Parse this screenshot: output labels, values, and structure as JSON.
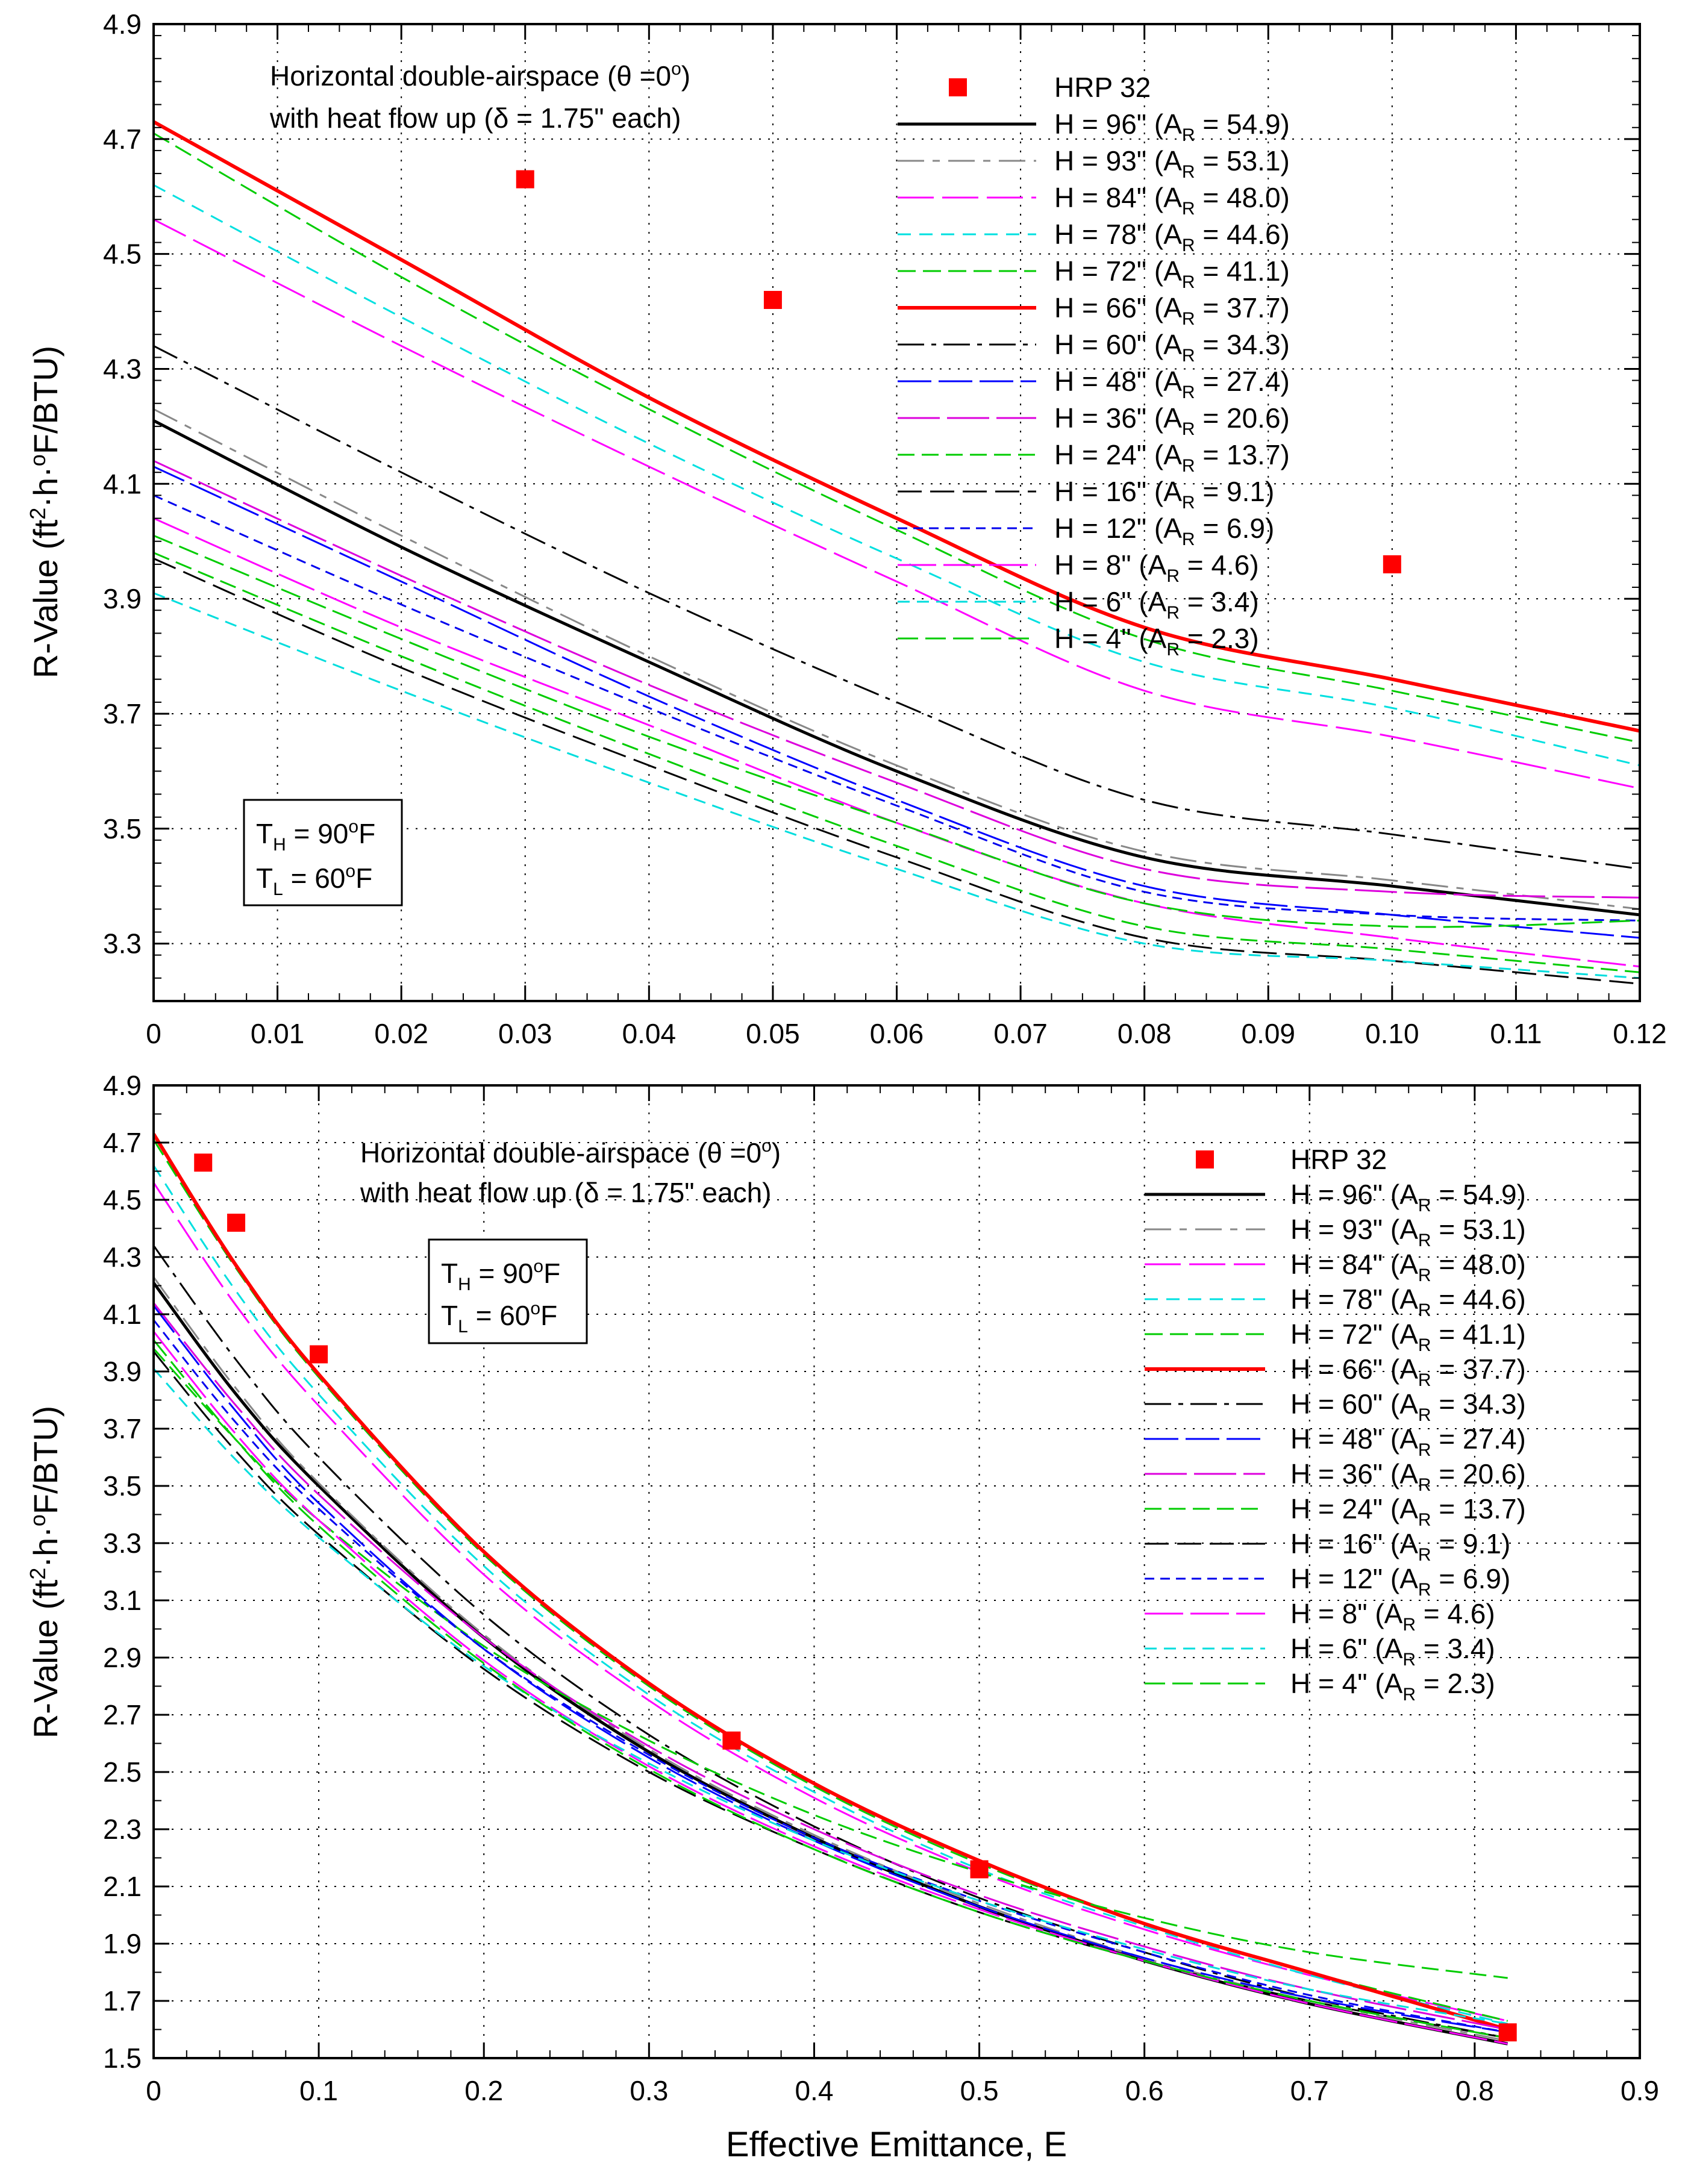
{
  "figure": {
    "shared_xlabel": "Effective Emittance, E"
  },
  "series_styles": [
    {
      "name": "H = 96\"",
      "ar": "54.9",
      "color": "#000000",
      "dash": "none",
      "width": 5
    },
    {
      "name": "H = 93\"",
      "ar": "53.1",
      "color": "#888888",
      "dash": "44,14,12,14",
      "width": 3
    },
    {
      "name": "H = 84\"",
      "ar": "48.0",
      "color": "#ff00ff",
      "dash": "60,14",
      "width": 3
    },
    {
      "name": "H = 78\"",
      "ar": "44.6",
      "color": "#00e0e0",
      "dash": "22,14",
      "width": 3
    },
    {
      "name": "H = 72\"",
      "ar": "41.1",
      "color": "#00cc00",
      "dash": "30,12",
      "width": 3
    },
    {
      "name": "H = 66\"",
      "ar": "37.7",
      "color": "#ff0000",
      "dash": "none",
      "width": 6
    },
    {
      "name": "H = 60\"",
      "ar": "34.3",
      "color": "#000000",
      "dash": "44,12,8,12",
      "width": 3
    },
    {
      "name": "H = 48\"",
      "ar": "27.4",
      "color": "#0000ff",
      "dash": "56,12",
      "width": 3
    },
    {
      "name": "H = 36\"",
      "ar": "20.6",
      "color": "#dd00dd",
      "dash": "70,12",
      "width": 3
    },
    {
      "name": "H = 24\"",
      "ar": "13.7",
      "color": "#00cc00",
      "dash": "28,12",
      "width": 3
    },
    {
      "name": "H = 16\"",
      "ar": "9.1",
      "color": "#000000",
      "dash": "40,14",
      "width": 3
    },
    {
      "name": "H = 12\"",
      "ar": "6.9",
      "color": "#0000ee",
      "dash": "16,10",
      "width": 3
    },
    {
      "name": "H = 8\"",
      "ar": "4.6",
      "color": "#ff00ff",
      "dash": "64,12",
      "width": 3
    },
    {
      "name": "H = 6\"",
      "ar": "3.4",
      "color": "#00dddd",
      "dash": "20,12",
      "width": 3
    },
    {
      "name": "H = 4\"",
      "ar": "2.3",
      "color": "#00cc00",
      "dash": "34,12",
      "width": 3
    }
  ],
  "marker_color": "#ff0000",
  "chart_data": [
    {
      "type": "line",
      "title": "",
      "xlabel": "",
      "ylabel": "R-Value (ft2·h·oF/BTU)",
      "annotation": {
        "line1": "Horizontal double-airspace (θ =0o)",
        "line2": "with heat flow up (δ = 1.75\" each)"
      },
      "temps": {
        "th": "TH = 90oF",
        "tl": "TL = 60oF"
      },
      "legend_marker_label": "HRP 32",
      "legend_position": "top-right",
      "xlim": [
        0,
        0.12
      ],
      "ylim": [
        3.2,
        4.9
      ],
      "xticks": [
        "0",
        "0.01",
        "0.02",
        "0.03",
        "0.04",
        "0.05",
        "0.06",
        "0.07",
        "0.08",
        "0.09",
        "0.10",
        "0.11",
        "0.12"
      ],
      "yticks": [
        "3.3",
        "3.5",
        "3.7",
        "3.9",
        "4.1",
        "4.3",
        "4.5",
        "4.7",
        "4.9"
      ],
      "grid": true,
      "x": [
        0,
        0.02,
        0.04,
        0.06,
        0.08,
        0.1,
        0.12
      ],
      "series": [
        {
          "name": "H = 96\" (AR = 54.9)",
          "values": [
            4.21,
            3.99,
            3.79,
            3.6,
            3.45,
            3.4,
            3.35
          ]
        },
        {
          "name": "H = 93\" (AR = 53.1)",
          "values": [
            4.23,
            4.01,
            3.8,
            3.61,
            3.46,
            3.41,
            3.36
          ]
        },
        {
          "name": "H = 84\" (AR = 48.0)",
          "values": [
            4.56,
            4.34,
            4.13,
            3.93,
            3.74,
            3.66,
            3.57
          ]
        },
        {
          "name": "H = 78\" (AR = 44.6)",
          "values": [
            4.62,
            4.39,
            4.17,
            3.97,
            3.79,
            3.71,
            3.61
          ]
        },
        {
          "name": "H = 72\" (AR = 41.1)",
          "values": [
            4.71,
            4.46,
            4.23,
            4.02,
            3.83,
            3.74,
            3.65
          ]
        },
        {
          "name": "H = 66\" (AR = 37.7)",
          "values": [
            4.73,
            4.49,
            4.25,
            4.04,
            3.85,
            3.76,
            3.67
          ]
        },
        {
          "name": "H = 60\" (AR = 34.3)",
          "values": [
            4.34,
            4.12,
            3.91,
            3.72,
            3.55,
            3.49,
            3.43
          ]
        },
        {
          "name": "H = 48\" (AR = 27.4)",
          "values": [
            4.13,
            3.93,
            3.73,
            3.55,
            3.4,
            3.35,
            3.31
          ]
        },
        {
          "name": "H = 36\" (AR = 20.6)",
          "values": [
            4.14,
            3.94,
            3.75,
            3.58,
            3.43,
            3.39,
            3.38
          ]
        },
        {
          "name": "H = 24\" (AR = 13.7)",
          "values": [
            3.98,
            3.8,
            3.63,
            3.47,
            3.33,
            3.29,
            3.25
          ]
        },
        {
          "name": "H = 16\" (AR = 9.1)",
          "values": [
            3.97,
            3.78,
            3.61,
            3.45,
            3.31,
            3.27,
            3.23
          ]
        },
        {
          "name": "H = 12\" (AR = 6.9)",
          "values": [
            4.08,
            3.89,
            3.71,
            3.54,
            3.39,
            3.35,
            3.34
          ]
        },
        {
          "name": "H = 8\" (AR = 4.6)",
          "values": [
            4.04,
            3.85,
            3.68,
            3.51,
            3.37,
            3.31,
            3.26
          ]
        },
        {
          "name": "H = 6\" (AR = 3.4)",
          "values": [
            3.91,
            3.74,
            3.58,
            3.43,
            3.3,
            3.27,
            3.24
          ]
        },
        {
          "name": "H = 4\" (AR = 2.3)",
          "values": [
            4.01,
            3.83,
            3.66,
            3.51,
            3.37,
            3.33,
            3.34
          ]
        }
      ],
      "markers": {
        "name": "HRP 32",
        "x": [
          0.03,
          0.05,
          0.1
        ],
        "y": [
          4.63,
          4.42,
          3.96
        ]
      }
    },
    {
      "type": "line",
      "title": "",
      "xlabel": "Effective Emittance, E",
      "ylabel": "R-Value (ft2·h·oF/BTU)",
      "annotation": {
        "line1": "Horizontal double-airspace (θ =0o)",
        "line2": "with heat flow up (δ = 1.75\" each)"
      },
      "temps": {
        "th": "TH = 90oF",
        "tl": "TL = 60oF"
      },
      "legend_marker_label": "HRP 32",
      "legend_position": "right",
      "xlim": [
        0,
        0.9
      ],
      "ylim": [
        1.5,
        4.9
      ],
      "xticks": [
        "0",
        "0.1",
        "0.2",
        "0.3",
        "0.4",
        "0.5",
        "0.6",
        "0.7",
        "0.8",
        "0.9"
      ],
      "yticks": [
        "1.5",
        "1.7",
        "1.9",
        "2.1",
        "2.3",
        "2.5",
        "2.7",
        "2.9",
        "3.1",
        "3.3",
        "3.5",
        "3.7",
        "3.9",
        "4.1",
        "4.3",
        "4.5",
        "4.7",
        "4.9"
      ],
      "grid": true,
      "x": [
        0,
        0.05,
        0.1,
        0.2,
        0.3,
        0.4,
        0.5,
        0.6,
        0.7,
        0.82
      ],
      "series": [
        {
          "name": "H = 96\" (AR = 54.9)",
          "values": [
            4.21,
            3.82,
            3.5,
            2.97,
            2.57,
            2.27,
            2.03,
            1.84,
            1.69,
            1.55
          ]
        },
        {
          "name": "H = 93\" (AR = 53.1)",
          "values": [
            4.23,
            3.84,
            3.51,
            2.98,
            2.58,
            2.28,
            2.04,
            1.85,
            1.7,
            1.56
          ]
        },
        {
          "name": "H = 84\" (AR = 48.0)",
          "values": [
            4.56,
            4.13,
            3.78,
            3.19,
            2.75,
            2.41,
            2.15,
            1.95,
            1.79,
            1.63
          ]
        },
        {
          "name": "H = 78\" (AR = 44.6)",
          "values": [
            4.62,
            4.18,
            3.82,
            3.22,
            2.77,
            2.43,
            2.16,
            1.96,
            1.79,
            1.62
          ]
        },
        {
          "name": "H = 72\" (AR = 41.1)",
          "values": [
            4.71,
            4.26,
            3.88,
            3.26,
            2.8,
            2.45,
            2.18,
            1.97,
            1.8,
            1.63
          ]
        },
        {
          "name": "H = 66\" (AR = 37.7)",
          "values": [
            4.73,
            4.27,
            3.89,
            3.27,
            2.81,
            2.46,
            2.19,
            1.97,
            1.8,
            1.6
          ]
        },
        {
          "name": "H = 60\" (AR = 34.3)",
          "values": [
            4.34,
            3.94,
            3.6,
            3.05,
            2.63,
            2.31,
            2.06,
            1.87,
            1.71,
            1.57
          ]
        },
        {
          "name": "H = 48\" (AR = 27.4)",
          "values": [
            4.13,
            3.76,
            3.44,
            2.93,
            2.55,
            2.26,
            2.03,
            1.85,
            1.71,
            1.59
          ]
        },
        {
          "name": "H = 36\" (AR = 20.6)",
          "values": [
            4.14,
            3.78,
            3.47,
            2.97,
            2.59,
            2.3,
            2.07,
            1.89,
            1.74,
            1.6
          ]
        },
        {
          "name": "H = 24\" (AR = 13.7)",
          "values": [
            3.98,
            3.66,
            3.38,
            2.94,
            2.61,
            2.35,
            2.15,
            1.99,
            1.87,
            1.78
          ]
        },
        {
          "name": "H = 16\" (AR = 9.1)",
          "values": [
            3.97,
            3.62,
            3.33,
            2.86,
            2.5,
            2.23,
            2.01,
            1.84,
            1.7,
            1.57
          ]
        },
        {
          "name": "H = 12\" (AR = 6.9)",
          "values": [
            4.08,
            3.72,
            3.42,
            2.93,
            2.56,
            2.27,
            2.05,
            1.87,
            1.72,
            1.59
          ]
        },
        {
          "name": "H = 8\" (AR = 4.6)",
          "values": [
            4.04,
            3.68,
            3.38,
            2.89,
            2.52,
            2.24,
            2.02,
            1.84,
            1.69,
            1.55
          ]
        },
        {
          "name": "H = 6\" (AR = 3.4)",
          "values": [
            3.91,
            3.59,
            3.32,
            2.87,
            2.53,
            2.26,
            2.05,
            1.88,
            1.74,
            1.62
          ]
        },
        {
          "name": "H = 4\" (AR = 2.3)",
          "values": [
            4.01,
            3.66,
            3.36,
            2.88,
            2.51,
            2.23,
            2.01,
            1.84,
            1.7,
            1.57
          ]
        }
      ],
      "markers": {
        "name": "HRP 32",
        "x": [
          0.03,
          0.05,
          0.1,
          0.35,
          0.5,
          0.82
        ],
        "y": [
          4.63,
          4.42,
          3.96,
          2.61,
          2.16,
          1.59
        ]
      }
    }
  ]
}
